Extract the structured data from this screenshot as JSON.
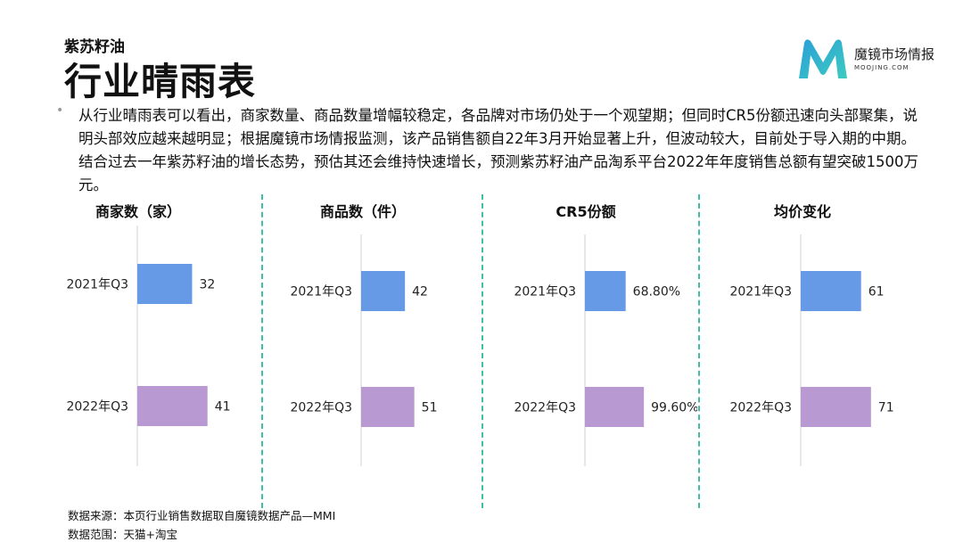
{
  "header": {
    "subtitle": "紫苏籽油",
    "title": "行业晴雨表"
  },
  "logo": {
    "name": "魔镜市场情报",
    "sub": "MOOJING.COM",
    "colors": [
      "#2a9fd8",
      "#3dcbc0"
    ]
  },
  "description": "从行业晴雨表可以看出，商家数量、商品数量增幅较稳定，各品牌对市场仍处于一个观望期；但同时CR5份额迅速向头部聚集，说明头部效应越来越明显；根据魔镜市场情报监测，该产品销售额自22年3月开始显著上升，但波动较大，目前处于导入期的中期。结合过去一年紫苏籽油的增长态势，预估其还会维持快速增长，预测紫苏籽油产品淘系平台2022年年度销售总额有望突破1500万元。",
  "colors": {
    "bar_2021": "#6699e6",
    "bar_2022": "#b899d1",
    "divider": "#3fbfa8"
  },
  "chart_data": [
    {
      "type": "bar",
      "title": "商家数（家）",
      "categories": [
        "2021年Q3",
        "2022年Q3"
      ],
      "values": [
        32,
        41
      ],
      "labels": [
        "32",
        "41"
      ]
    },
    {
      "type": "bar",
      "title": "商品数（件）",
      "categories": [
        "2021年Q3",
        "2022年Q3"
      ],
      "values": [
        42,
        51
      ],
      "labels": [
        "42",
        "51"
      ]
    },
    {
      "type": "bar",
      "title": "CR5份额",
      "categories": [
        "2021年Q3",
        "2022年Q3"
      ],
      "values": [
        68.8,
        99.6
      ],
      "labels": [
        "68.80%",
        "99.60%"
      ]
    },
    {
      "type": "bar",
      "title": "均价变化",
      "categories": [
        "2021年Q3",
        "2022年Q3"
      ],
      "values": [
        61,
        71
      ],
      "labels": [
        "61",
        "71"
      ]
    }
  ],
  "footer": {
    "source": "数据来源：本页行业销售数据取自魔镜数据产品—MMI",
    "scope": "数据范围：天猫+淘宝"
  }
}
